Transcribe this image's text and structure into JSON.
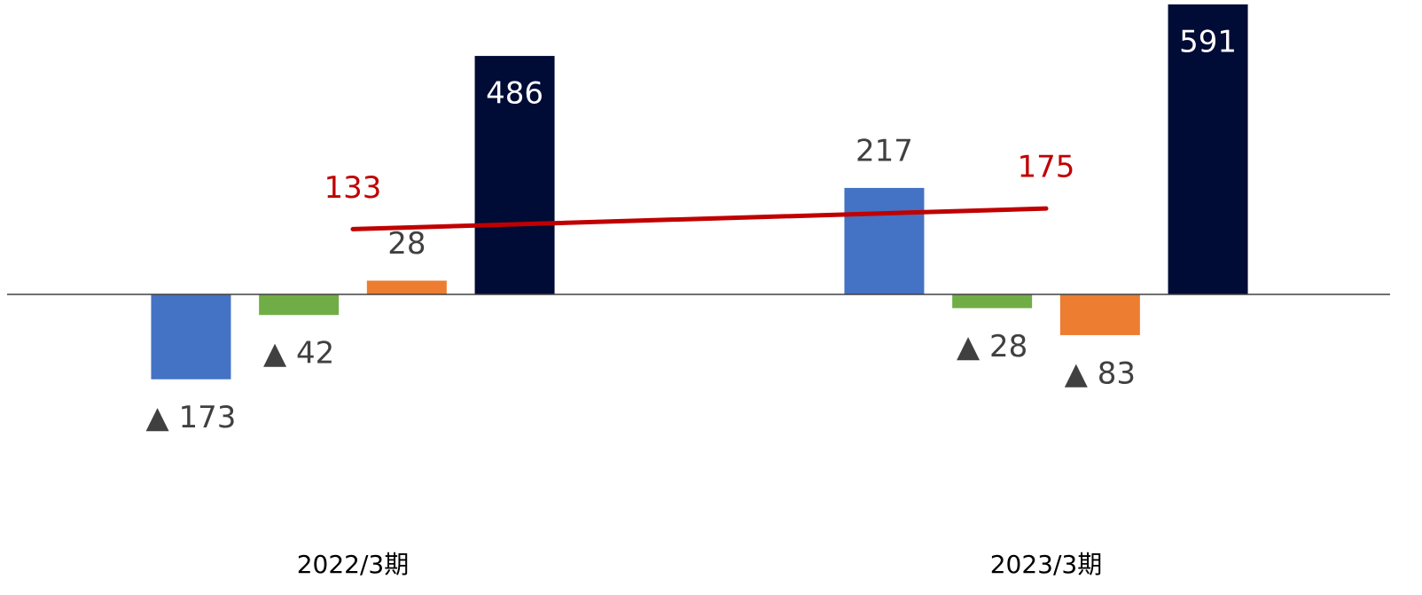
{
  "chart_data": {
    "type": "bar",
    "categories": [
      "2022/3期",
      "2023/3期"
    ],
    "ylim": [
      -300,
      600
    ],
    "series": [
      {
        "type": "bar",
        "color": "#4472c4",
        "values": [
          -173,
          217
        ],
        "value_labels": [
          "▲ 173",
          "217"
        ]
      },
      {
        "type": "bar",
        "color": "#70ad47",
        "values": [
          -42,
          -28
        ],
        "value_labels": [
          "▲ 42",
          "▲ 28"
        ]
      },
      {
        "type": "bar",
        "color": "#ed7d31",
        "values": [
          28,
          -83
        ],
        "value_labels": [
          "28",
          "▲ 83"
        ]
      },
      {
        "type": "bar",
        "color": "#000b36",
        "values": [
          486,
          591
        ],
        "label_color": "#ffffff",
        "label_inside": true
      },
      {
        "type": "line",
        "color": "#c00000",
        "values": [
          133,
          175
        ]
      }
    ]
  }
}
